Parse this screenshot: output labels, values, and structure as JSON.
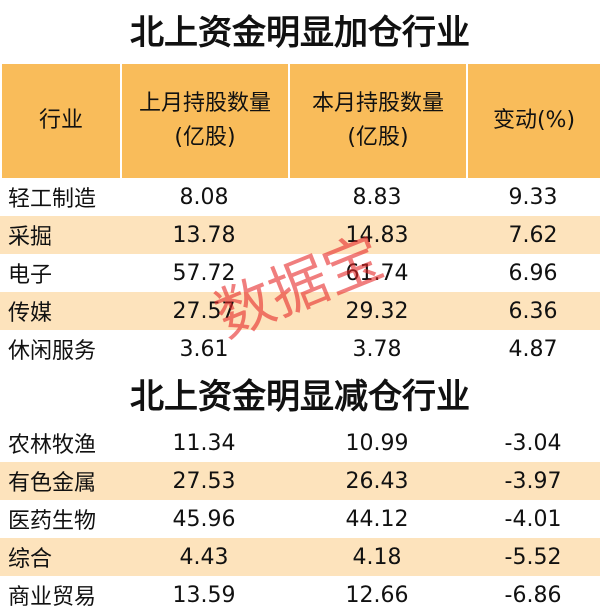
{
  "title_increase": "北上资金明显加仓行业",
  "title_decrease": "北上资金明显减仓行业",
  "header": [
    "行业",
    "上月持股数量\n(亿股)",
    "本月持股数量\n(亿股)",
    "变动(%)"
  ],
  "watermark": "数据宝",
  "increase_rows": [
    [
      "轻工制造",
      "8.08",
      "8.83",
      "9.33"
    ],
    [
      "采掘",
      "13.78",
      "14.83",
      "7.62"
    ],
    [
      "电子",
      "57.72",
      "61.74",
      "6.96"
    ],
    [
      "传媒",
      "27.57",
      "29.32",
      "6.36"
    ],
    [
      "休闲服务",
      "3.61",
      "3.78",
      "4.87"
    ]
  ],
  "decrease_rows": [
    [
      "农林牧渔",
      "11.34",
      "10.99",
      "-3.04"
    ],
    [
      "有色金属",
      "27.53",
      "26.43",
      "-3.97"
    ],
    [
      "医药生物",
      "45.96",
      "44.12",
      "-4.01"
    ],
    [
      "综合",
      "4.43",
      "4.18",
      "-5.52"
    ],
    [
      "商业贸易",
      "13.59",
      "12.66",
      "-6.86"
    ]
  ]
}
